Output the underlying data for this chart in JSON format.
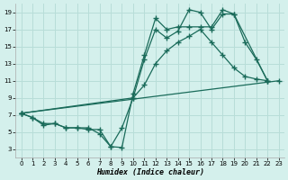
{
  "xlabel": "Humidex (Indice chaleur)",
  "bg_color": "#d4f0ec",
  "grid_color": "#b8ddd8",
  "line_color": "#1a6b5a",
  "xlim": [
    -0.5,
    23.5
  ],
  "ylim": [
    2,
    20
  ],
  "xticks": [
    0,
    1,
    2,
    3,
    4,
    5,
    6,
    7,
    8,
    9,
    10,
    11,
    12,
    13,
    14,
    15,
    16,
    17,
    18,
    19,
    20,
    21,
    22,
    23
  ],
  "yticks": [
    3,
    5,
    7,
    9,
    11,
    13,
    15,
    17,
    19
  ],
  "lines": [
    {
      "x": [
        0,
        1,
        2,
        3,
        4,
        5,
        6,
        7,
        8,
        9,
        10,
        11,
        12,
        13,
        14,
        15,
        16,
        17,
        18,
        19,
        22
      ],
      "y": [
        7.2,
        6.7,
        6.0,
        6.0,
        5.5,
        5.5,
        5.5,
        4.8,
        3.3,
        3.2,
        9.5,
        14.0,
        18.3,
        17.0,
        17.3,
        17.3,
        17.3,
        17.3,
        19.3,
        18.8,
        11.0
      ]
    },
    {
      "x": [
        0,
        1,
        2,
        3,
        4,
        5,
        6,
        7,
        8,
        9,
        10,
        11,
        12,
        13,
        14,
        15,
        16,
        17,
        18,
        19,
        20,
        21,
        22
      ],
      "y": [
        7.2,
        6.7,
        5.8,
        6.0,
        5.5,
        5.5,
        5.3,
        5.3,
        3.3,
        5.5,
        9.0,
        13.5,
        17.0,
        16.0,
        16.8,
        19.3,
        19.0,
        17.0,
        18.8,
        18.8,
        15.5,
        13.5,
        11.0
      ]
    },
    {
      "x": [
        0,
        10,
        11,
        12,
        13,
        14,
        15,
        16,
        17,
        18,
        19,
        20,
        21,
        22
      ],
      "y": [
        7.2,
        9.0,
        10.5,
        13.0,
        14.5,
        15.5,
        16.2,
        17.0,
        15.5,
        14.0,
        12.5,
        11.5,
        11.2,
        11.0
      ]
    },
    {
      "x": [
        0,
        23
      ],
      "y": [
        7.2,
        11.0
      ]
    }
  ],
  "marker": "+",
  "markersize": 4,
  "markeredgewidth": 1.0,
  "linewidth": 0.9
}
